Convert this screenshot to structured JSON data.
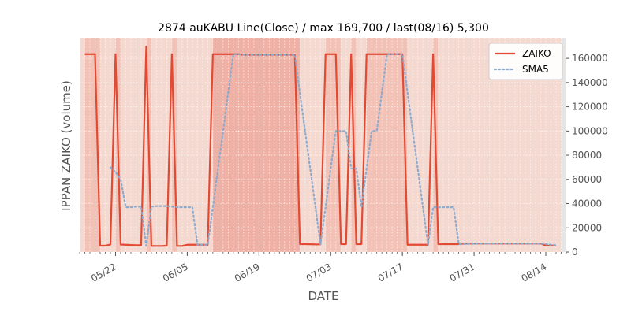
{
  "chart_data": {
    "type": "line",
    "title": "2874 auKABU Line(Close) / max 169,700 / last(08/16) 5,300",
    "xlabel": "DATE",
    "ylabel": "IPPAN ZAIKO (volume)",
    "ylim": [
      0,
      177000
    ],
    "yticks": [
      0,
      20000,
      40000,
      60000,
      80000,
      100000,
      120000,
      140000,
      160000
    ],
    "ytick_labels": [
      "0",
      "20000",
      "40000",
      "60000",
      "80000",
      "100000",
      "120000",
      "140000",
      "160000"
    ],
    "xticks": [
      "2018-05-22",
      "2018-06-05",
      "2018-06-19",
      "2018-07-03",
      "2018-07-17",
      "2018-07-31",
      "2018-08-14"
    ],
    "xtick_labels": [
      "05/22",
      "06/05",
      "06/19",
      "07/03",
      "07/17",
      "07/31",
      "08/14"
    ],
    "xlim": [
      "2018-05-15",
      "2018-08-18"
    ],
    "grid": true,
    "legend_position": "top-right",
    "colors": {
      "zaiko": "#e24a33",
      "sma5": "#8eaacc",
      "background": "#e5e5e5",
      "band_light": "#f4d9d1",
      "band_mid": "#f2c2b7",
      "band_dark": "#efb1a5"
    },
    "series": [
      {
        "name": "ZAIKO",
        "style": "solid",
        "points": [
          [
            "2018-05-16",
            163500
          ],
          [
            "2018-05-17",
            163500
          ],
          [
            "2018-05-18",
            163500
          ],
          [
            "2018-05-19",
            5200
          ],
          [
            "2018-05-20",
            5200
          ],
          [
            "2018-05-21",
            6200
          ],
          [
            "2018-05-22",
            163500
          ],
          [
            "2018-05-23",
            6200
          ],
          [
            "2018-05-24",
            6000
          ],
          [
            "2018-05-25",
            5800
          ],
          [
            "2018-05-26",
            5600
          ],
          [
            "2018-05-27",
            5600
          ],
          [
            "2018-05-28",
            169700
          ],
          [
            "2018-05-29",
            5000
          ],
          [
            "2018-05-30",
            5000
          ],
          [
            "2018-05-31",
            5000
          ],
          [
            "2018-06-01",
            5200
          ],
          [
            "2018-06-02",
            163500
          ],
          [
            "2018-06-03",
            5000
          ],
          [
            "2018-06-04",
            5000
          ],
          [
            "2018-06-05",
            6000
          ],
          [
            "2018-06-06",
            6000
          ],
          [
            "2018-06-07",
            6000
          ],
          [
            "2018-06-08",
            6000
          ],
          [
            "2018-06-09",
            6000
          ],
          [
            "2018-06-10",
            163500
          ],
          [
            "2018-06-11",
            163500
          ],
          [
            "2018-06-12",
            163500
          ],
          [
            "2018-06-13",
            163500
          ],
          [
            "2018-06-14",
            163500
          ],
          [
            "2018-06-15",
            163500
          ],
          [
            "2018-06-16",
            163000
          ],
          [
            "2018-06-17",
            163000
          ],
          [
            "2018-06-18",
            163000
          ],
          [
            "2018-06-19",
            163000
          ],
          [
            "2018-06-20",
            163000
          ],
          [
            "2018-06-21",
            163000
          ],
          [
            "2018-06-22",
            163000
          ],
          [
            "2018-06-23",
            163000
          ],
          [
            "2018-06-24",
            163000
          ],
          [
            "2018-06-25",
            163000
          ],
          [
            "2018-06-26",
            163000
          ],
          [
            "2018-06-27",
            6500
          ],
          [
            "2018-06-28",
            6500
          ],
          [
            "2018-06-29",
            6400
          ],
          [
            "2018-06-30",
            6300
          ],
          [
            "2018-07-01",
            6300
          ],
          [
            "2018-07-02",
            163500
          ],
          [
            "2018-07-03",
            163500
          ],
          [
            "2018-07-04",
            163500
          ],
          [
            "2018-07-05",
            6500
          ],
          [
            "2018-07-06",
            6500
          ],
          [
            "2018-07-07",
            163500
          ],
          [
            "2018-07-08",
            6500
          ],
          [
            "2018-07-09",
            6500
          ],
          [
            "2018-07-10",
            163500
          ],
          [
            "2018-07-11",
            163500
          ],
          [
            "2018-07-12",
            163500
          ],
          [
            "2018-07-13",
            163500
          ],
          [
            "2018-07-14",
            163500
          ],
          [
            "2018-07-15",
            163500
          ],
          [
            "2018-07-16",
            163500
          ],
          [
            "2018-07-17",
            163500
          ],
          [
            "2018-07-18",
            6000
          ],
          [
            "2018-07-19",
            6000
          ],
          [
            "2018-07-20",
            6000
          ],
          [
            "2018-07-21",
            6000
          ],
          [
            "2018-07-22",
            6000
          ],
          [
            "2018-07-23",
            163500
          ],
          [
            "2018-07-24",
            6500
          ],
          [
            "2018-07-25",
            6500
          ],
          [
            "2018-07-26",
            6500
          ],
          [
            "2018-07-27",
            6500
          ],
          [
            "2018-07-28",
            6500
          ],
          [
            "2018-07-29",
            7000
          ],
          [
            "2018-07-30",
            7000
          ],
          [
            "2018-07-31",
            7000
          ],
          [
            "2018-08-01",
            7000
          ],
          [
            "2018-08-02",
            7000
          ],
          [
            "2018-08-03",
            7000
          ],
          [
            "2018-08-04",
            7000
          ],
          [
            "2018-08-05",
            7000
          ],
          [
            "2018-08-06",
            7000
          ],
          [
            "2018-08-07",
            7000
          ],
          [
            "2018-08-08",
            7000
          ],
          [
            "2018-08-09",
            7000
          ],
          [
            "2018-08-10",
            7000
          ],
          [
            "2018-08-11",
            7000
          ],
          [
            "2018-08-12",
            7000
          ],
          [
            "2018-08-13",
            7000
          ],
          [
            "2018-08-14",
            5300
          ],
          [
            "2018-08-15",
            5300
          ],
          [
            "2018-08-16",
            5300
          ]
        ]
      },
      {
        "name": "SMA5",
        "style": "dotted",
        "points": [
          [
            "2018-05-21",
            70000
          ],
          [
            "2018-05-22",
            66000
          ],
          [
            "2018-05-23",
            60000
          ],
          [
            "2018-05-24",
            37000
          ],
          [
            "2018-05-25",
            37000
          ],
          [
            "2018-05-26",
            37500
          ],
          [
            "2018-05-27",
            37500
          ],
          [
            "2018-05-28",
            5000
          ],
          [
            "2018-05-29",
            37500
          ],
          [
            "2018-05-30",
            38000
          ],
          [
            "2018-05-31",
            38000
          ],
          [
            "2018-06-01",
            38000
          ],
          [
            "2018-06-02",
            37500
          ],
          [
            "2018-06-03",
            37000
          ],
          [
            "2018-06-04",
            37000
          ],
          [
            "2018-06-05",
            37000
          ],
          [
            "2018-06-06",
            37000
          ],
          [
            "2018-06-07",
            6000
          ],
          [
            "2018-06-08",
            6000
          ],
          [
            "2018-06-09",
            6000
          ],
          [
            "2018-06-10",
            37000
          ],
          [
            "2018-06-11",
            69000
          ],
          [
            "2018-06-12",
            100000
          ],
          [
            "2018-06-13",
            132000
          ],
          [
            "2018-06-14",
            163500
          ],
          [
            "2018-06-15",
            163500
          ],
          [
            "2018-06-16",
            163000
          ],
          [
            "2018-06-17",
            163000
          ],
          [
            "2018-06-18",
            163000
          ],
          [
            "2018-06-19",
            163000
          ],
          [
            "2018-06-20",
            163000
          ],
          [
            "2018-06-21",
            163000
          ],
          [
            "2018-06-22",
            163000
          ],
          [
            "2018-06-23",
            163000
          ],
          [
            "2018-06-24",
            163000
          ],
          [
            "2018-06-25",
            163000
          ],
          [
            "2018-06-26",
            163000
          ],
          [
            "2018-06-27",
            131000
          ],
          [
            "2018-06-28",
            100000
          ],
          [
            "2018-06-29",
            69000
          ],
          [
            "2018-06-30",
            38000
          ],
          [
            "2018-07-01",
            6400
          ],
          [
            "2018-07-02",
            37000
          ],
          [
            "2018-07-03",
            69000
          ],
          [
            "2018-07-04",
            100000
          ],
          [
            "2018-07-05",
            100000
          ],
          [
            "2018-07-06",
            100000
          ],
          [
            "2018-07-07",
            69000
          ],
          [
            "2018-07-08",
            69000
          ],
          [
            "2018-07-09",
            37000
          ],
          [
            "2018-07-10",
            69000
          ],
          [
            "2018-07-11",
            100000
          ],
          [
            "2018-07-12",
            100000
          ],
          [
            "2018-07-13",
            132000
          ],
          [
            "2018-07-14",
            163500
          ],
          [
            "2018-07-15",
            163500
          ],
          [
            "2018-07-16",
            163500
          ],
          [
            "2018-07-17",
            163500
          ],
          [
            "2018-07-18",
            132000
          ],
          [
            "2018-07-19",
            100000
          ],
          [
            "2018-07-20",
            69000
          ],
          [
            "2018-07-21",
            37000
          ],
          [
            "2018-07-22",
            6000
          ],
          [
            "2018-07-23",
            37000
          ],
          [
            "2018-07-24",
            37000
          ],
          [
            "2018-07-25",
            37000
          ],
          [
            "2018-07-26",
            37000
          ],
          [
            "2018-07-27",
            37000
          ],
          [
            "2018-07-28",
            6500
          ],
          [
            "2018-07-29",
            6600
          ],
          [
            "2018-07-30",
            6700
          ],
          [
            "2018-07-31",
            6800
          ],
          [
            "2018-08-01",
            7000
          ],
          [
            "2018-08-02",
            7000
          ],
          [
            "2018-08-03",
            7000
          ],
          [
            "2018-08-04",
            7000
          ],
          [
            "2018-08-05",
            7000
          ],
          [
            "2018-08-06",
            7000
          ],
          [
            "2018-08-07",
            7000
          ],
          [
            "2018-08-08",
            7000
          ],
          [
            "2018-08-09",
            7000
          ],
          [
            "2018-08-10",
            7000
          ],
          [
            "2018-08-11",
            7000
          ],
          [
            "2018-08-12",
            7000
          ],
          [
            "2018-08-13",
            7000
          ],
          [
            "2018-08-14",
            6600
          ],
          [
            "2018-08-15",
            6000
          ],
          [
            "2018-08-16",
            5600
          ]
        ]
      }
    ],
    "shaded_bands": [
      {
        "start": "2018-05-15",
        "end": "2018-05-16",
        "level": "light"
      },
      {
        "start": "2018-05-16",
        "end": "2018-05-19",
        "level": "mid"
      },
      {
        "start": "2018-05-19",
        "end": "2018-05-22",
        "level": "light"
      },
      {
        "start": "2018-05-22",
        "end": "2018-05-23",
        "level": "mid"
      },
      {
        "start": "2018-05-23",
        "end": "2018-05-28",
        "level": "light"
      },
      {
        "start": "2018-05-28",
        "end": "2018-05-29",
        "level": "mid"
      },
      {
        "start": "2018-05-29",
        "end": "2018-06-02",
        "level": "light"
      },
      {
        "start": "2018-06-02",
        "end": "2018-06-03",
        "level": "mid"
      },
      {
        "start": "2018-06-03",
        "end": "2018-06-10",
        "level": "light"
      },
      {
        "start": "2018-06-10",
        "end": "2018-06-27",
        "level": "dark"
      },
      {
        "start": "2018-06-27",
        "end": "2018-07-02",
        "level": "light"
      },
      {
        "start": "2018-07-02",
        "end": "2018-07-05",
        "level": "mid"
      },
      {
        "start": "2018-07-05",
        "end": "2018-07-07",
        "level": "light"
      },
      {
        "start": "2018-07-07",
        "end": "2018-07-08",
        "level": "mid"
      },
      {
        "start": "2018-07-08",
        "end": "2018-07-10",
        "level": "light"
      },
      {
        "start": "2018-07-10",
        "end": "2018-07-18",
        "level": "mid"
      },
      {
        "start": "2018-07-18",
        "end": "2018-07-23",
        "level": "light"
      },
      {
        "start": "2018-07-23",
        "end": "2018-07-24",
        "level": "mid"
      },
      {
        "start": "2018-07-24",
        "end": "2018-08-17",
        "level": "light"
      }
    ]
  }
}
